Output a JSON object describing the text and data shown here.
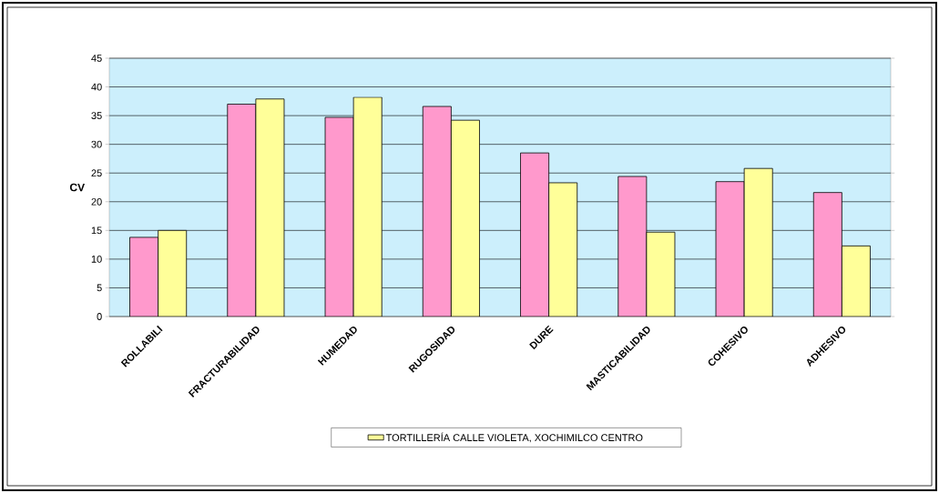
{
  "chart_data": {
    "type": "bar",
    "ylabel": "CV",
    "categories": [
      "ROLLABILI",
      "FRACTURABILIDAD",
      "HUMEDAD",
      "RUGOSIDAD",
      "DURE",
      "MASTICABILIDAD",
      "COHESIVO",
      "ADHESIVO"
    ],
    "series": [
      {
        "color": "#ff99cc",
        "values": [
          13.8,
          37.0,
          34.7,
          36.6,
          28.5,
          24.4,
          23.5,
          21.6
        ]
      },
      {
        "name": "TORTILLERÍA CALLE VIOLETA, XOCHIMILCO CENTRO",
        "color": "#ffff99",
        "values": [
          15.0,
          37.9,
          38.2,
          34.2,
          23.3,
          14.7,
          25.8,
          12.3
        ]
      }
    ],
    "ylim": [
      0,
      45
    ],
    "yticks": [
      0,
      5,
      10,
      15,
      20,
      25,
      30,
      35,
      40,
      45
    ],
    "grid": "y",
    "legend": "bottom"
  }
}
